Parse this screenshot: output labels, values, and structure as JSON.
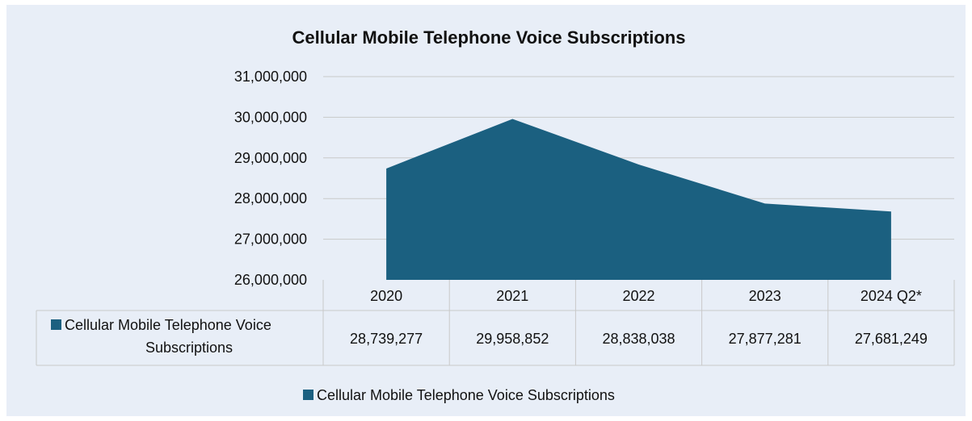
{
  "chart_data": {
    "type": "area",
    "title": "Cellular Mobile Telephone Voice Subscriptions",
    "categories": [
      "2020",
      "2021",
      "2022",
      "2023",
      "2024 Q2*"
    ],
    "series": [
      {
        "name": "Cellular Mobile Telephone Voice Subscriptions",
        "values": [
          28739277,
          29958852,
          28838038,
          27877281,
          27681249
        ],
        "color": "#1b6080"
      }
    ],
    "ylim": [
      26000000,
      31000000
    ],
    "yticks": [
      26000000,
      27000000,
      28000000,
      29000000,
      30000000,
      31000000
    ],
    "ytick_labels": [
      "26,000,000",
      "27,000,000",
      "28,000,000",
      "29,000,000",
      "30,000,000",
      "31,000,000"
    ],
    "data_table": {
      "row_label_lines": [
        "Cellular Mobile Telephone Voice",
        "Subscriptions"
      ],
      "values_text": [
        "28,739,277",
        "29,958,852",
        "28,838,038",
        "27,877,281",
        "27,681,249"
      ]
    },
    "legend": {
      "position": "bottom",
      "label": "Cellular Mobile Telephone Voice Subscriptions"
    },
    "grid": true
  }
}
